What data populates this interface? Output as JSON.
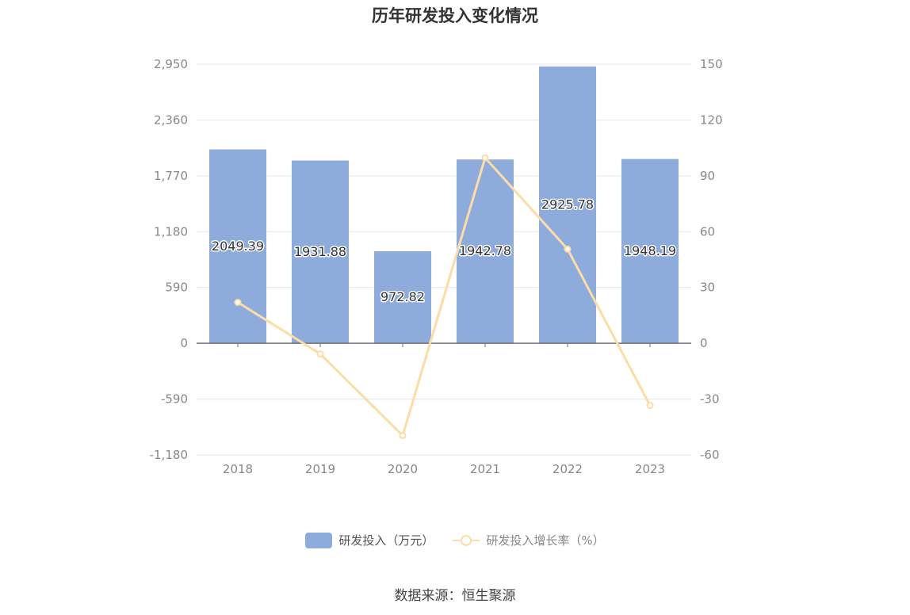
{
  "chart_data": {
    "type": "bar",
    "title": "历年研发投入变化情况",
    "categories": [
      "2018",
      "2019",
      "2020",
      "2021",
      "2022",
      "2023"
    ],
    "series": [
      {
        "name": "研发投入（万元）",
        "type": "bar",
        "axis": "left",
        "values": [
          2049.39,
          1931.88,
          972.82,
          1942.78,
          2925.78,
          1948.19
        ],
        "labels": [
          "2049.39",
          "1931.88",
          "972.82",
          "1942.78",
          "2925.78",
          "1948.19"
        ]
      },
      {
        "name": "研发投入增长率（%）",
        "type": "line",
        "axis": "right",
        "values": [
          22.0,
          -5.7,
          -49.6,
          99.7,
          50.6,
          -33.4
        ]
      }
    ],
    "y_left": {
      "ylim": [
        -1180,
        2950
      ],
      "ticks": [
        "2,950",
        "2,360",
        "1,770",
        "1,180",
        "590",
        "0",
        "-590",
        "-1,180"
      ],
      "tick_values": [
        2950,
        2360,
        1770,
        1180,
        590,
        0,
        -590,
        -1180
      ]
    },
    "y_right": {
      "ylim": [
        -60,
        150
      ],
      "ticks": [
        "150",
        "120",
        "90",
        "60",
        "30",
        "0",
        "-30",
        "-60"
      ],
      "tick_values": [
        150,
        120,
        90,
        60,
        30,
        0,
        -30,
        -60
      ]
    },
    "grid": true,
    "legend_position": "bottom"
  },
  "colors": {
    "bar": "#8dacdb",
    "line": "#fddca5",
    "grid": "#e0e6f1",
    "axis": "#6e7079",
    "tick_text": "#888888"
  },
  "source": "数据来源：恒生聚源"
}
